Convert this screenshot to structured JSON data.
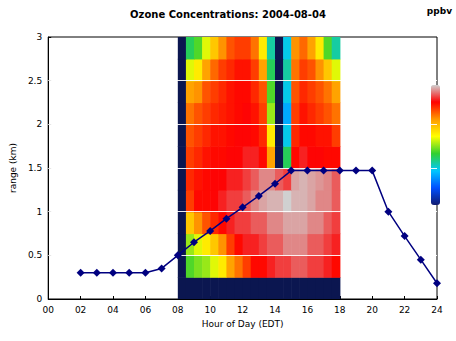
{
  "chart_data": {
    "type": "line",
    "title": "Ozone Concentrations: 2004-08-04",
    "x_label": "Hour of Day (EDT)",
    "y_label": "range (km)",
    "x": [
      2,
      3,
      4,
      5,
      6,
      7,
      8,
      9,
      10,
      11,
      12,
      13,
      14,
      15,
      16,
      17,
      18,
      19,
      20,
      21,
      22,
      23,
      24
    ],
    "values": [
      0.3,
      0.3,
      0.3,
      0.3,
      0.3,
      0.35,
      0.5,
      0.65,
      0.78,
      0.92,
      1.05,
      1.18,
      1.32,
      1.47,
      1.47,
      1.47,
      1.47,
      1.47,
      1.47,
      1.0,
      0.72,
      0.45,
      0.18
    ],
    "color": "#000080",
    "marker": "diamond",
    "xlim": [
      0,
      24
    ],
    "xticks": [
      {
        "value": 0,
        "label": "00"
      },
      {
        "value": 2,
        "label": "02"
      },
      {
        "value": 4,
        "label": "04"
      },
      {
        "value": 6,
        "label": "06"
      },
      {
        "value": 8,
        "label": "08"
      },
      10,
      12,
      14,
      16,
      18,
      20,
      22,
      24
    ],
    "ylim": [
      0,
      3
    ],
    "yticks": [
      0,
      0.5,
      1,
      1.5,
      2,
      2.5,
      3
    ],
    "grid": true,
    "heatmap": {
      "x": [
        8.25,
        8.75,
        9.25,
        9.75,
        10.25,
        10.75,
        11.25,
        11.75,
        12.25,
        12.75,
        13.25,
        13.75,
        14.25,
        14.75,
        15.25,
        15.75,
        16.25,
        16.75,
        17.25,
        17.75
      ],
      "y": [
        0.125,
        0.375,
        0.625,
        0.875,
        1.125,
        1.375,
        1.625,
        1.875,
        2.125,
        2.375,
        2.625,
        2.875
      ],
      "cells": [
        [
          null,
          null,
          null,
          null,
          null,
          null,
          null,
          null,
          null,
          null,
          null,
          null,
          null,
          null,
          null,
          null,
          null,
          null,
          null,
          null
        ],
        [
          null,
          45,
          48,
          50,
          55,
          60,
          70,
          75,
          80,
          85,
          85,
          88,
          90,
          90,
          92,
          92,
          90,
          90,
          88,
          85
        ],
        [
          null,
          50,
          55,
          60,
          65,
          72,
          80,
          85,
          88,
          88,
          90,
          92,
          92,
          95,
          95,
          95,
          92,
          92,
          90,
          88
        ],
        [
          null,
          65,
          72,
          78,
          82,
          85,
          88,
          90,
          90,
          92,
          92,
          95,
          95,
          97,
          97,
          97,
          95,
          95,
          92,
          90
        ],
        [
          null,
          80,
          85,
          85,
          86,
          88,
          90,
          90,
          92,
          95,
          97,
          98,
          98,
          100,
          98,
          98,
          97,
          95,
          95,
          92
        ],
        [
          null,
          82,
          84,
          85,
          86,
          86,
          88,
          88,
          90,
          92,
          95,
          95,
          92,
          90,
          97,
          98,
          97,
          96,
          95,
          92
        ],
        [
          null,
          80,
          82,
          84,
          85,
          85,
          86,
          86,
          88,
          88,
          85,
          70,
          null,
          40,
          85,
          88,
          86,
          86,
          85,
          85
        ],
        [
          null,
          78,
          80,
          82,
          84,
          84,
          85,
          86,
          86,
          85,
          82,
          60,
          null,
          30,
          82,
          85,
          85,
          84,
          84,
          80
        ],
        [
          null,
          75,
          78,
          80,
          82,
          83,
          84,
          85,
          86,
          84,
          80,
          50,
          null,
          25,
          80,
          84,
          82,
          80,
          78,
          75
        ],
        [
          null,
          70,
          72,
          78,
          80,
          82,
          84,
          85,
          85,
          82,
          78,
          45,
          null,
          30,
          78,
          82,
          80,
          78,
          75,
          70
        ],
        [
          null,
          55,
          60,
          70,
          76,
          80,
          82,
          84,
          84,
          80,
          70,
          40,
          null,
          35,
          75,
          80,
          78,
          72,
          65,
          55
        ],
        [
          null,
          40,
          45,
          55,
          65,
          72,
          78,
          80,
          80,
          75,
          60,
          35,
          null,
          30,
          72,
          76,
          70,
          60,
          45,
          35
        ]
      ],
      "colorbar_range": [
        0,
        100
      ],
      "colorbar_label": "ppbv"
    }
  }
}
